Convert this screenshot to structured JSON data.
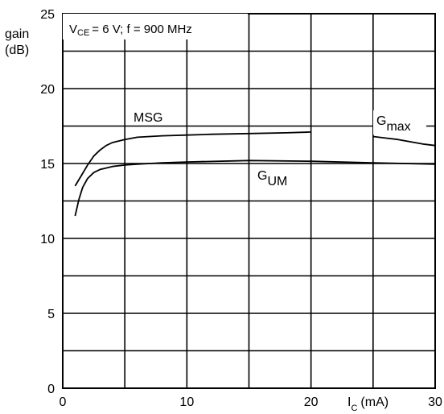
{
  "chart_data": {
    "type": "line",
    "ylabel": "gain",
    "ylabel_unit": "(dB)",
    "xlabel": "I",
    "xlabel_sub": "C",
    "xlabel_unit": "(mA)",
    "condition": {
      "v": "V",
      "v_sub": "CE",
      "rest": "= 6 V; f = 900 MHz"
    },
    "xlim": [
      0,
      30
    ],
    "ylim": [
      0,
      25
    ],
    "x_gridlines": [
      5,
      10,
      15,
      20,
      25,
      30
    ],
    "y_gridlines": [
      2.5,
      5,
      7.5,
      10,
      12.5,
      15,
      17.5,
      20,
      22.5,
      25
    ],
    "x_ticks": [
      {
        "value": 0,
        "label": "0"
      },
      {
        "value": 10,
        "label": "10"
      },
      {
        "value": 20,
        "label": "20"
      },
      {
        "value": 30,
        "label": "30"
      }
    ],
    "y_ticks": [
      {
        "value": 0,
        "label": "0"
      },
      {
        "value": 5,
        "label": "5"
      },
      {
        "value": 10,
        "label": "10"
      },
      {
        "value": 15,
        "label": "15"
      },
      {
        "value": 20,
        "label": "20"
      },
      {
        "value": 25,
        "label": "25"
      }
    ],
    "grid": true,
    "series": [
      {
        "name": "MSG",
        "label_main": "MSG",
        "label_sub": "",
        "color": "#000000",
        "x": [
          1,
          1.5,
          2,
          2.5,
          3,
          3.5,
          4,
          5,
          6,
          7,
          8,
          10,
          12,
          15,
          18,
          20
        ],
        "y": [
          13.5,
          14.2,
          14.9,
          15.5,
          15.9,
          16.2,
          16.4,
          16.6,
          16.75,
          16.8,
          16.85,
          16.9,
          16.95,
          17.0,
          17.05,
          17.1
        ]
      },
      {
        "name": "Gmax",
        "label_main": "G",
        "label_sub": "max",
        "color": "#000000",
        "x": [
          25,
          26,
          27,
          28,
          29,
          30
        ],
        "y": [
          16.8,
          16.7,
          16.6,
          16.45,
          16.3,
          16.2
        ]
      },
      {
        "name": "GUM",
        "label_main": "G",
        "label_sub": "UM",
        "color": "#000000",
        "x": [
          1,
          1.3,
          1.6,
          2,
          2.5,
          3,
          3.5,
          4,
          5,
          6,
          8,
          10,
          15,
          20,
          25,
          30
        ],
        "y": [
          11.5,
          12.6,
          13.4,
          14.0,
          14.4,
          14.6,
          14.7,
          14.8,
          14.9,
          14.95,
          15.05,
          15.1,
          15.2,
          15.15,
          15.05,
          14.95
        ]
      }
    ]
  }
}
